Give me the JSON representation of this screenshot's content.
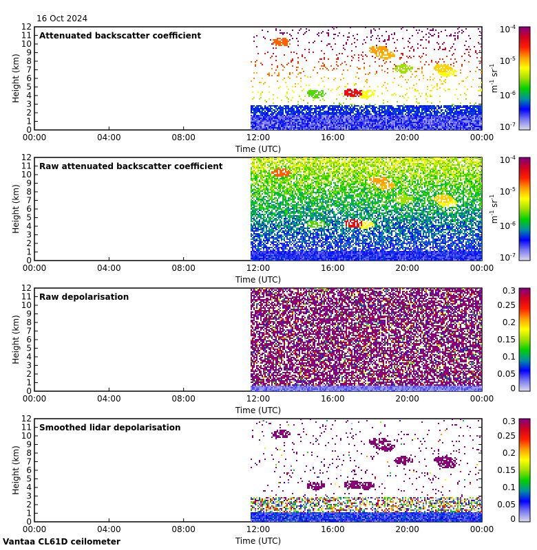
{
  "date": "16 Oct 2024",
  "footer": "Vantaa CL61D ceilometer",
  "chart_data": [
    {
      "type": "heatmap",
      "title": "Attenuated backscatter coefficient",
      "xlabel": "Time (UTC)",
      "ylabel": "Height (km)",
      "x_ticks": [
        "00:00",
        "04:00",
        "08:00",
        "12:00",
        "16:00",
        "20:00",
        "00:00"
      ],
      "xlim_hours": [
        0,
        24
      ],
      "ylim": [
        0,
        12
      ],
      "y_ticks": [
        0,
        1,
        2,
        3,
        4,
        5,
        6,
        7,
        8,
        9,
        10,
        11,
        12
      ],
      "data_start_hours": 11.6,
      "colorbar": {
        "scale": "log",
        "range": [
          1e-07,
          0.0001
        ],
        "ticks": [
          "10",
          "10",
          "10",
          "10"
        ],
        "tick_exponents": [
          "-7",
          "-6",
          "-5",
          "-4"
        ],
        "label": "m",
        "label_exp": "-1",
        "label2": " sr",
        "label2_exp": "-1"
      }
    },
    {
      "type": "heatmap",
      "title": "Raw attenuated backscatter coefficient",
      "xlabel": "Time (UTC)",
      "ylabel": "Height (km)",
      "x_ticks": [
        "00:00",
        "04:00",
        "08:00",
        "12:00",
        "16:00",
        "20:00",
        "00:00"
      ],
      "xlim_hours": [
        0,
        24
      ],
      "ylim": [
        0,
        12
      ],
      "y_ticks": [
        0,
        1,
        2,
        3,
        4,
        5,
        6,
        7,
        8,
        9,
        10,
        11,
        12
      ],
      "data_start_hours": 11.6,
      "colorbar": {
        "scale": "log",
        "range": [
          1e-07,
          0.0001
        ],
        "ticks": [
          "10",
          "10",
          "10",
          "10"
        ],
        "tick_exponents": [
          "-7",
          "-6",
          "-5",
          "-4"
        ],
        "label": "m",
        "label_exp": "-1",
        "label2": " sr",
        "label2_exp": "-1"
      }
    },
    {
      "type": "heatmap",
      "title": "Raw depolarisation",
      "xlabel": "Time (UTC)",
      "ylabel": "Height (km)",
      "x_ticks": [
        "00:00",
        "04:00",
        "08:00",
        "12:00",
        "16:00",
        "20:00",
        "00:00"
      ],
      "xlim_hours": [
        0,
        24
      ],
      "ylim": [
        0,
        12
      ],
      "y_ticks": [
        0,
        1,
        2,
        3,
        4,
        5,
        6,
        7,
        8,
        9,
        10,
        11,
        12
      ],
      "data_start_hours": 11.6,
      "colorbar": {
        "scale": "linear",
        "range": [
          0,
          0.3
        ],
        "ticks": [
          "0",
          "0.05",
          "0.1",
          "0.15",
          "0.2",
          "0.25",
          "0.3"
        ]
      }
    },
    {
      "type": "heatmap",
      "title": "Smoothed lidar depolarisation",
      "xlabel": "Time (UTC)",
      "ylabel": "Height (km)",
      "x_ticks": [
        "00:00",
        "04:00",
        "08:00",
        "12:00",
        "16:00",
        "20:00",
        "00:00"
      ],
      "xlim_hours": [
        0,
        24
      ],
      "ylim": [
        0,
        12
      ],
      "y_ticks": [
        0,
        1,
        2,
        3,
        4,
        5,
        6,
        7,
        8,
        9,
        10,
        11,
        12
      ],
      "data_start_hours": 11.6,
      "colorbar": {
        "scale": "linear",
        "range": [
          0,
          0.3
        ],
        "ticks": [
          "0",
          "0.05",
          "0.1",
          "0.15",
          "0.2",
          "0.25",
          "0.3"
        ]
      }
    }
  ],
  "colors": {
    "cmap": [
      "#dcdcec",
      "#7c7cf0",
      "#0000ff",
      "#0090a0",
      "#00d000",
      "#a0e000",
      "#ffff00",
      "#ffa000",
      "#ff2000",
      "#d00020",
      "#800080"
    ]
  }
}
